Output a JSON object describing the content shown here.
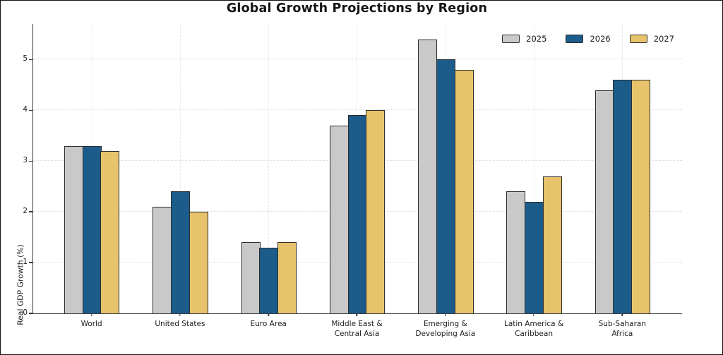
{
  "title": "Global Growth Projections by Region",
  "chart_data": {
    "type": "bar",
    "title": "Global Growth Projections by Region",
    "xlabel": "",
    "ylabel": "Real GDP Growth (%)",
    "ylim": [
      0,
      5.7
    ],
    "yticks": [
      0,
      1,
      2,
      3,
      4,
      5
    ],
    "grid": "dashed, horizontal and vertical, light gray",
    "legend_position": "upper right, horizontal",
    "categories": [
      "World",
      "United States",
      "Euro Area",
      "Middle East &\nCentral Asia",
      "Emerging &\nDeveloping Asia",
      "Latin America &\nCaribbean",
      "Sub-Saharan\nAfrica"
    ],
    "series": [
      {
        "name": "2025",
        "color": "#c9c9c9",
        "values": [
          3.3,
          2.1,
          1.4,
          3.7,
          5.4,
          2.4,
          4.4
        ]
      },
      {
        "name": "2026",
        "color": "#1b5c8a",
        "values": [
          3.3,
          2.4,
          1.3,
          3.9,
          5.0,
          2.2,
          4.6
        ]
      },
      {
        "name": "2027",
        "color": "#e7c36b",
        "values": [
          3.2,
          2.0,
          1.4,
          4.0,
          4.8,
          2.7,
          4.6
        ]
      }
    ],
    "bar_edge_color": "#2e2e2e",
    "background_color": "#ffffff"
  }
}
